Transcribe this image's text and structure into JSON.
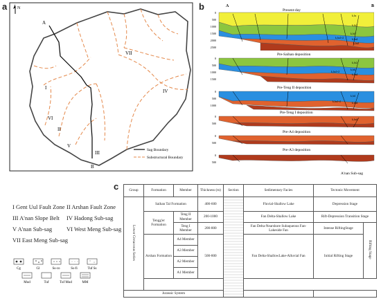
{
  "panel_a": {
    "label": "a",
    "north": "N",
    "point_a": "A",
    "point_b": "B",
    "zone_labels": [
      "I",
      "II",
      "III",
      "IV",
      "V",
      "VI",
      "VII"
    ],
    "legend": {
      "sag_boundary": "Sag Boundary",
      "substructural_boundary": "Substructural Boundary"
    }
  },
  "panel_b": {
    "label": "b",
    "end_a": "A",
    "end_b": "B",
    "sections": [
      "Present-day",
      "Pre-Saihan deposition",
      "Pre-Teng II deposition",
      "Pre-Teng I deposition",
      "Pre-A4 deposition",
      "Pre-A3 deposition"
    ],
    "depth_ticks": [
      "0",
      "500",
      "1000",
      "1500",
      "2000",
      "2500"
    ],
    "caption": "A'nan Sub-sag",
    "layer_labels": [
      "k₁bs",
      "k₁bt2",
      "k₁bt1",
      "k₁ba4",
      "k₁ba3",
      "k₁ba1+2"
    ]
  },
  "zones": {
    "row1_left": "I Gent Uul Fault Zone",
    "row1_right": "II Arshan Fault Zone",
    "row2_left": "III A'nan Slope Belt",
    "row2_right": "IV Hadong Sub-sag",
    "row3_left": "V A'nan Sub-sag",
    "row3_right": "VI West Meng Sub-sag",
    "row4_left": "VII East Meng Sub-sag"
  },
  "lith_legend": {
    "top": [
      "Cg",
      "Gl",
      "Ss-co",
      "Ss-fi",
      "Tuf Ss"
    ],
    "bottom": [
      "Mud",
      "Tuf",
      "Tuf Mud",
      "MM"
    ]
  },
  "panel_c": {
    "label": "c",
    "headers": [
      "Group",
      "Formation",
      "Member",
      "Thickness (m)",
      "Section",
      "Sedimentary Facies",
      "Tectonic Movement"
    ],
    "group": "Lower Cretaceous Series",
    "formations": {
      "saihan": "Saihan Tal Formation",
      "tengger": "Tengg'er Formation",
      "arshan": "Arshan Formation"
    },
    "members": {
      "teng2": "Teng II Member",
      "teng1": "Teng I Member",
      "a4": "A4 Member",
      "a3": "A3 Member",
      "a2": "A2 Member",
      "a1": "A1 Member"
    },
    "thickness": {
      "saihan": "400-600",
      "teng2": "200-1000",
      "teng1": "200-800",
      "arshan": "500-800"
    },
    "facies": {
      "saihan": "Fluvial-Shallow Lake",
      "teng2": "Fan Delta-Shallow Lake",
      "teng1": "Fan Delta-Nearshore Subaqueous Fan-Lakeside Fan",
      "arshan": "Fan Delta-ShallowLake-Alluvial Fan"
    },
    "tectonic": {
      "saihan": "Depression Stage",
      "teng2": "Rift-Depression Transition Stage",
      "teng1": "Intense RiftingStage",
      "arshan": "Initial Rifting Stage",
      "rifting": "Rifting Stage"
    },
    "jurassic": "Jurassic System"
  }
}
